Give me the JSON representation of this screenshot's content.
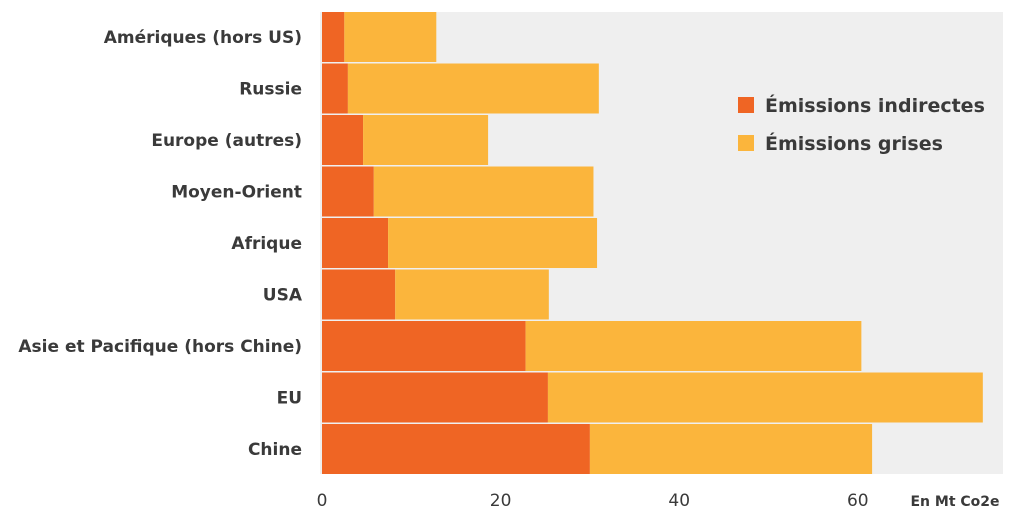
{
  "chart_data": {
    "type": "bar",
    "orientation": "horizontal",
    "stacked": true,
    "categories": [
      "Amériques (hors US)",
      "Russie",
      "Europe (autres)",
      "Moyen-Orient",
      "Afrique",
      "USA",
      "Asie et Pacifique (hors Chine)",
      "EU",
      "Chine"
    ],
    "series": [
      {
        "name": "Émissions indirectes",
        "color": "#ef6524",
        "values": [
          2.5,
          2.9,
          4.6,
          5.8,
          7.4,
          8.2,
          22.8,
          25.3,
          30.0
        ]
      },
      {
        "name": "Émissions grises",
        "color": "#fbb53c",
        "values": [
          10.3,
          28.1,
          14.0,
          24.6,
          23.4,
          17.2,
          37.6,
          48.7,
          31.6
        ]
      }
    ],
    "xlim": [
      0,
      74
    ],
    "xticks": [
      0,
      20,
      40,
      60
    ],
    "xlabel": "En Mt Co2e",
    "legend_position": "top-right",
    "grid": false,
    "plot_background": "#efefef"
  }
}
